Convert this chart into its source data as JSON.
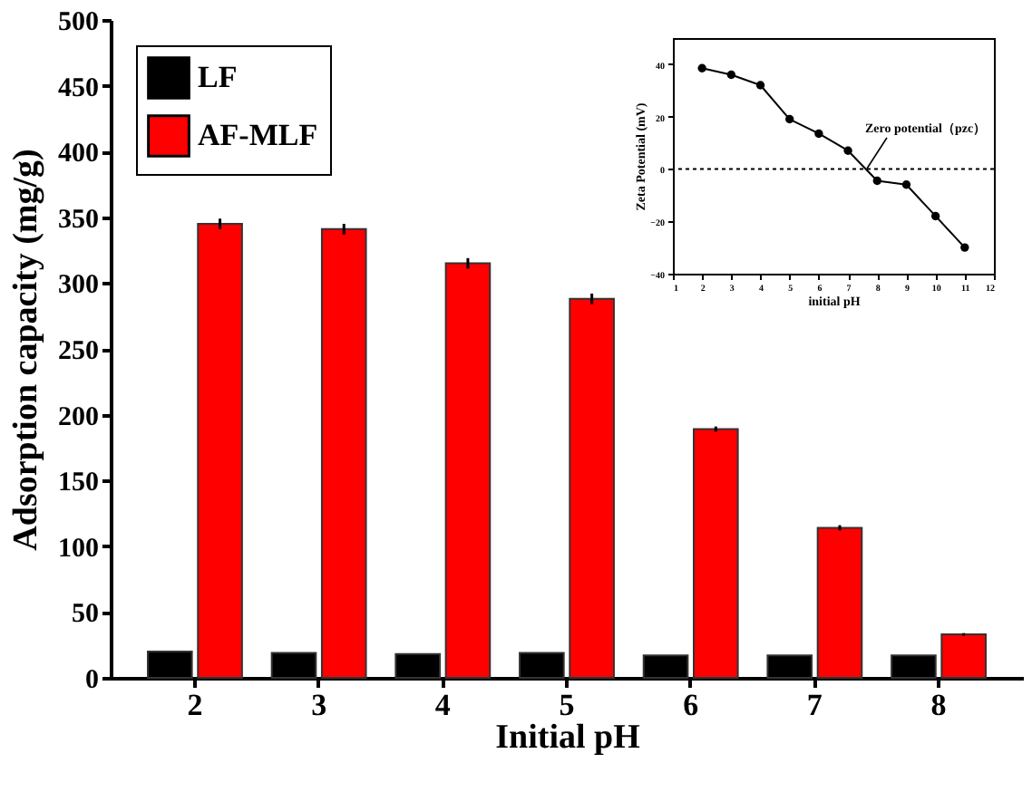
{
  "chart_data": [
    {
      "type": "bar",
      "xlabel": "Initial pH",
      "ylabel": "Adsorption capacity (mg/g)",
      "categories": [
        "2",
        "3",
        "4",
        "5",
        "6",
        "7",
        "8"
      ],
      "series": [
        {
          "name": "LF",
          "color": "#000000",
          "values": [
            20,
            19,
            18,
            19,
            17,
            17,
            17
          ]
        },
        {
          "name": "AF-MLF",
          "color": "#ff0000",
          "values": [
            345,
            341,
            315,
            288,
            189,
            114,
            33
          ],
          "errors": [
            4,
            4,
            4,
            4,
            2,
            2,
            1
          ]
        }
      ],
      "ylim": [
        0,
        500
      ],
      "yticks": [
        0,
        50,
        100,
        150,
        200,
        250,
        300,
        350,
        400,
        450,
        500
      ],
      "legend": "top left"
    },
    {
      "type": "line",
      "xlabel": "initial pH",
      "ylabel": "Zeta Potential (mV)",
      "x": [
        2,
        3,
        4,
        5,
        6,
        7,
        8,
        9,
        10,
        11
      ],
      "series": [
        {
          "color": "#000000",
          "values": [
            38.5,
            36,
            32,
            19,
            13.5,
            7,
            -4.5,
            -6,
            -18,
            -30
          ]
        }
      ],
      "xlim": [
        1,
        12
      ],
      "xticks": [
        1,
        2,
        3,
        4,
        5,
        6,
        7,
        8,
        9,
        10,
        11,
        12
      ],
      "ylim": [
        -40,
        50
      ],
      "yticks": [
        -40,
        -20,
        0,
        20,
        40
      ],
      "marker": "circle",
      "line_style": "solid",
      "ref_lines": [
        {
          "axis": "y",
          "value": 0,
          "line_style": "dotted",
          "color": "#000000"
        }
      ],
      "annotations": [
        "Zero potential（pzc）"
      ]
    }
  ]
}
